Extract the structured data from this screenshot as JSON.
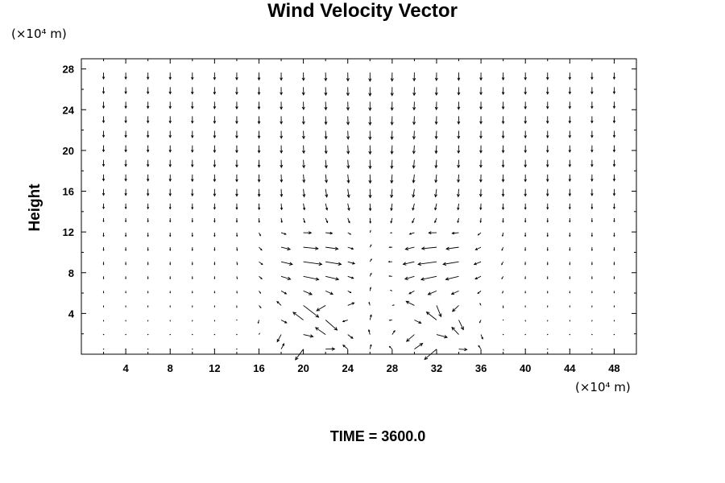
{
  "chart_data": {
    "type": "vector-field",
    "title": "Wind Velocity Vector",
    "ylabel": "Height",
    "xlabel": "",
    "x_unit_label": "(×10⁴ m)",
    "y_unit_label": "(×10⁴ m)",
    "footer": "TIME = 3600.0",
    "xlim": [
      0,
      50
    ],
    "ylim": [
      0,
      29
    ],
    "x_ticks": [
      4,
      8,
      12,
      16,
      20,
      24,
      28,
      32,
      36,
      40,
      44,
      48
    ],
    "y_ticks": [
      4,
      8,
      12,
      16,
      20,
      24,
      28
    ],
    "grid_x_spacing": 2,
    "grid_y_spacing": 2,
    "updraft_center_x": 26.5,
    "convergence_height": 10,
    "color": "#000000"
  }
}
